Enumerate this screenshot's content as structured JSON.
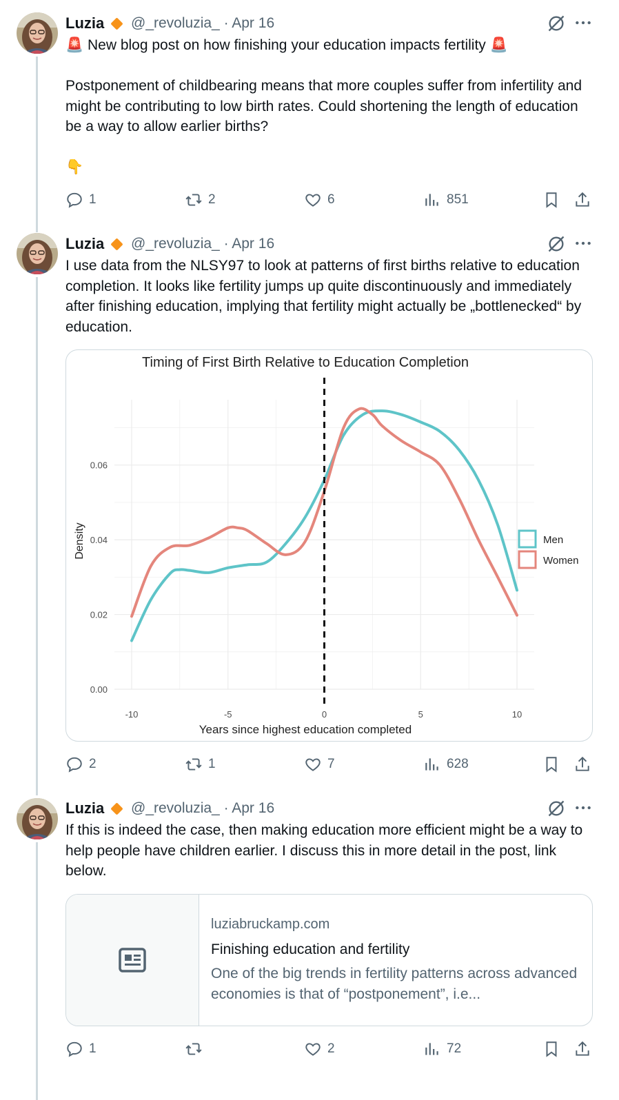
{
  "colors": {
    "secondary_text": "#536471",
    "badge": "#f7931a",
    "thread_line": "#cfd9de",
    "men": "#5ec4c8",
    "women": "#e4867c"
  },
  "posts": [
    {
      "author": "Luzia",
      "handle": "@_revoluzia_",
      "separator": "·",
      "date": "Apr 16",
      "lines": [
        "🚨 New blog post on how finishing your education impacts fertility 🚨",
        "",
        "Postponement of childbearing means that more couples suffer from infertility and might be contributing to low birth rates. Could shortening the length of education be a way to allow earlier births?",
        "",
        "👇"
      ],
      "stats": {
        "replies": "1",
        "reposts": "2",
        "likes": "6",
        "views": "851"
      }
    },
    {
      "author": "Luzia",
      "handle": "@_revoluzia_",
      "separator": "·",
      "date": "Apr 16",
      "lines": [
        "I use data from the NLSY97 to look at patterns of first births relative to education completion. It looks like fertility jumps up quite discontinuously and immediately after finishing education, implying that fertility might actually be „bottlenecked“ by education."
      ],
      "stats": {
        "replies": "2",
        "reposts": "1",
        "likes": "7",
        "views": "628"
      }
    },
    {
      "author": "Luzia",
      "handle": "@_revoluzia_",
      "separator": "·",
      "date": "Apr 16",
      "lines": [
        "If this is indeed the case, then making education more efficient might be a way to help people have children earlier. I discuss this in more detail in the post, link below."
      ],
      "link_card": {
        "domain": "luziabruckamp.com",
        "title": "Finishing education and fertility",
        "description": "One of the big trends in fertility patterns across advanced economies is that of “postponement”, i.e..."
      },
      "stats": {
        "replies": "1",
        "reposts": "",
        "likes": "2",
        "views": "72"
      }
    }
  ],
  "icons": [
    "grok-icon",
    "more-icon",
    "reply-icon",
    "repost-icon",
    "like-icon",
    "views-icon",
    "bookmark-icon",
    "share-icon",
    "article-icon"
  ],
  "chart_data": {
    "type": "line",
    "title": "Timing of First Birth Relative to Education Completion",
    "xlabel": "Years since highest education completed",
    "ylabel": "Density",
    "xlim": [
      -10,
      10
    ],
    "ylim": [
      0,
      0.076
    ],
    "xticks": [
      "-10",
      "-5",
      "0",
      "5",
      "10"
    ],
    "yticks": [
      "0.00",
      "0.02",
      "0.04",
      "0.06"
    ],
    "grid": true,
    "legend_position": "right",
    "vline_x": 0,
    "series": [
      {
        "name": "Men",
        "x": [
          -10,
          -9,
          -8,
          -7.5,
          -7,
          -6,
          -5,
          -4,
          -3,
          -2,
          -1,
          0,
          1,
          2,
          3,
          4,
          5,
          6,
          7,
          8,
          9,
          10
        ],
        "y": [
          0.013,
          0.024,
          0.031,
          0.032,
          0.0318,
          0.0312,
          0.0325,
          0.0333,
          0.034,
          0.039,
          0.046,
          0.056,
          0.068,
          0.0735,
          0.0745,
          0.0735,
          0.0715,
          0.069,
          0.064,
          0.056,
          0.044,
          0.0265
        ]
      },
      {
        "name": "Women",
        "x": [
          -10,
          -9,
          -8,
          -7,
          -6,
          -5,
          -4.5,
          -4,
          -3,
          -2,
          -1,
          0,
          1,
          1.8,
          2.5,
          3,
          4,
          5,
          6,
          7,
          8,
          9,
          10
        ],
        "y": [
          0.0195,
          0.033,
          0.038,
          0.0385,
          0.0405,
          0.0432,
          0.0432,
          0.0425,
          0.039,
          0.036,
          0.0395,
          0.053,
          0.07,
          0.075,
          0.0735,
          0.0705,
          0.0665,
          0.0635,
          0.06,
          0.051,
          0.04,
          0.03,
          0.0198
        ]
      }
    ]
  }
}
